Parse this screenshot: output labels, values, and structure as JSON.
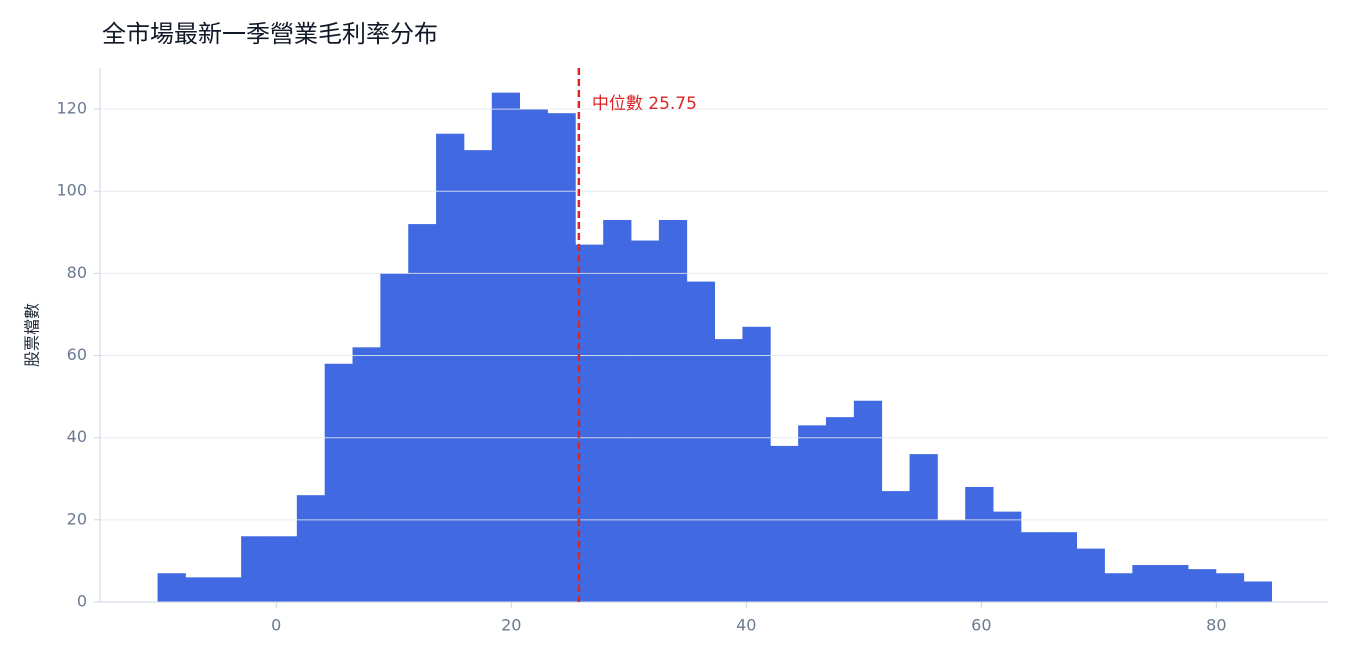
{
  "chart_data": {
    "type": "histogram",
    "title": "全市場最新一季營業毛利率分布",
    "y_label": "股票檔數",
    "bins": [
      -10.1,
      -7.73,
      -5.36,
      -2.99,
      -0.62,
      1.75,
      4.12,
      6.49,
      8.86,
      11.23,
      13.6,
      15.97,
      18.34,
      20.71,
      23.08,
      25.45,
      27.82,
      30.19,
      32.56,
      34.93,
      37.3,
      39.67,
      42.04,
      44.41,
      46.78,
      49.15,
      51.52,
      53.89,
      56.26,
      58.63,
      61.0,
      63.37,
      65.74,
      68.11,
      70.48,
      72.85,
      75.22,
      77.59,
      79.96,
      82.33,
      84.7
    ],
    "values": [
      7,
      6,
      6,
      16,
      16,
      26,
      58,
      62,
      80,
      92,
      114,
      110,
      124,
      120,
      119,
      87,
      93,
      88,
      93,
      78,
      64,
      67,
      38,
      43,
      45,
      49,
      27,
      36,
      20,
      28,
      22,
      17,
      17,
      13,
      7,
      9,
      9,
      8,
      7,
      5
    ],
    "color": "#4169e1",
    "median": 25.75,
    "median_color": "#dc2626",
    "median_label": "中位數 25.75",
    "xlim": [
      -15,
      89.5
    ],
    "xticks": [
      0,
      20,
      40,
      60,
      80
    ],
    "ylim": [
      0,
      130
    ],
    "yticks": [
      0,
      20,
      40,
      60,
      80,
      100,
      120
    ],
    "grid": true
  }
}
